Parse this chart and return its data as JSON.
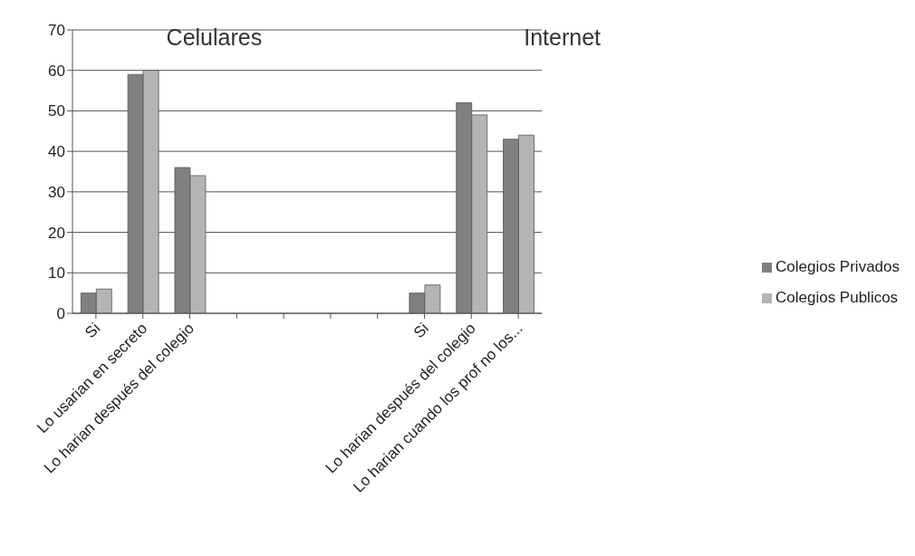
{
  "chart_data": {
    "type": "bar",
    "categories": [
      "Si",
      "Lo usarian en secreto",
      "Lo harian después del colegio",
      null,
      null,
      null,
      null,
      "Si",
      "Lo harian después del colegio",
      "Lo harian cuando los prof no los..."
    ],
    "series": [
      {
        "name": "Colegios Privados",
        "color": "#808080",
        "values": [
          5,
          59,
          36,
          null,
          null,
          null,
          null,
          5,
          52,
          43
        ]
      },
      {
        "name": "Colegios Publicos",
        "color": "#b4b4b4",
        "values": [
          6,
          60,
          34,
          null,
          null,
          null,
          null,
          7,
          49,
          44
        ]
      }
    ],
    "ylim": [
      0,
      70
    ],
    "yticks": [
      0,
      10,
      20,
      30,
      40,
      50,
      60,
      70
    ],
    "grid": "y",
    "legend": "right",
    "annotations": [
      "Celulares",
      "Internet"
    ]
  }
}
